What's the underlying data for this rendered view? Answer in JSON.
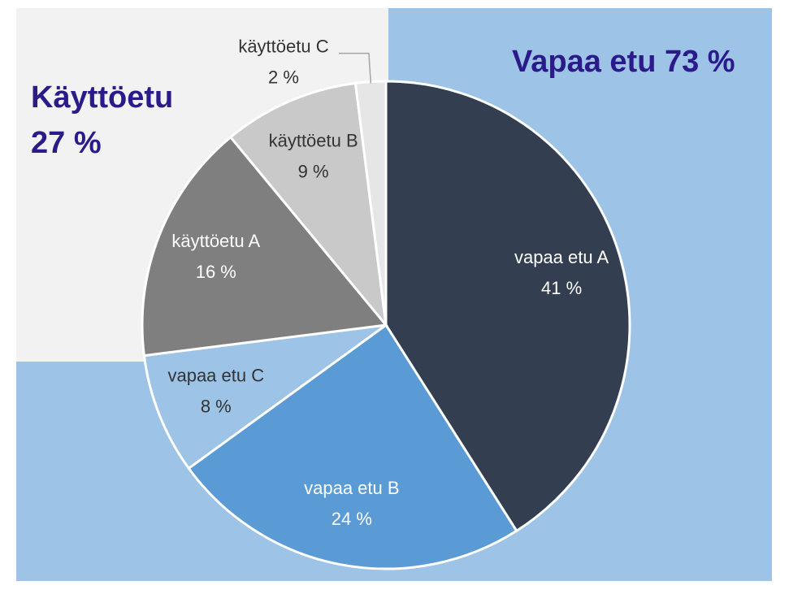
{
  "chart_data": {
    "type": "pie",
    "categories": [
      "vapaa etu A",
      "vapaa etu B",
      "vapaa etu C",
      "käyttöetu A",
      "käyttöetu B",
      "käyttöetu C"
    ],
    "values": [
      41,
      24,
      8,
      16,
      9,
      2
    ],
    "value_labels": [
      "41 %",
      "24 %",
      "8 %",
      "16 %",
      "9 %",
      "2 %"
    ],
    "colors": [
      "#333f50",
      "#5b9bd5",
      "#9dc3e6",
      "#7f7f7f",
      "#c9c9c9",
      "#e7e6e6"
    ],
    "annotations": [
      "Vapaa etu 73 %",
      "Käyttöetu",
      "27 %"
    ]
  }
}
